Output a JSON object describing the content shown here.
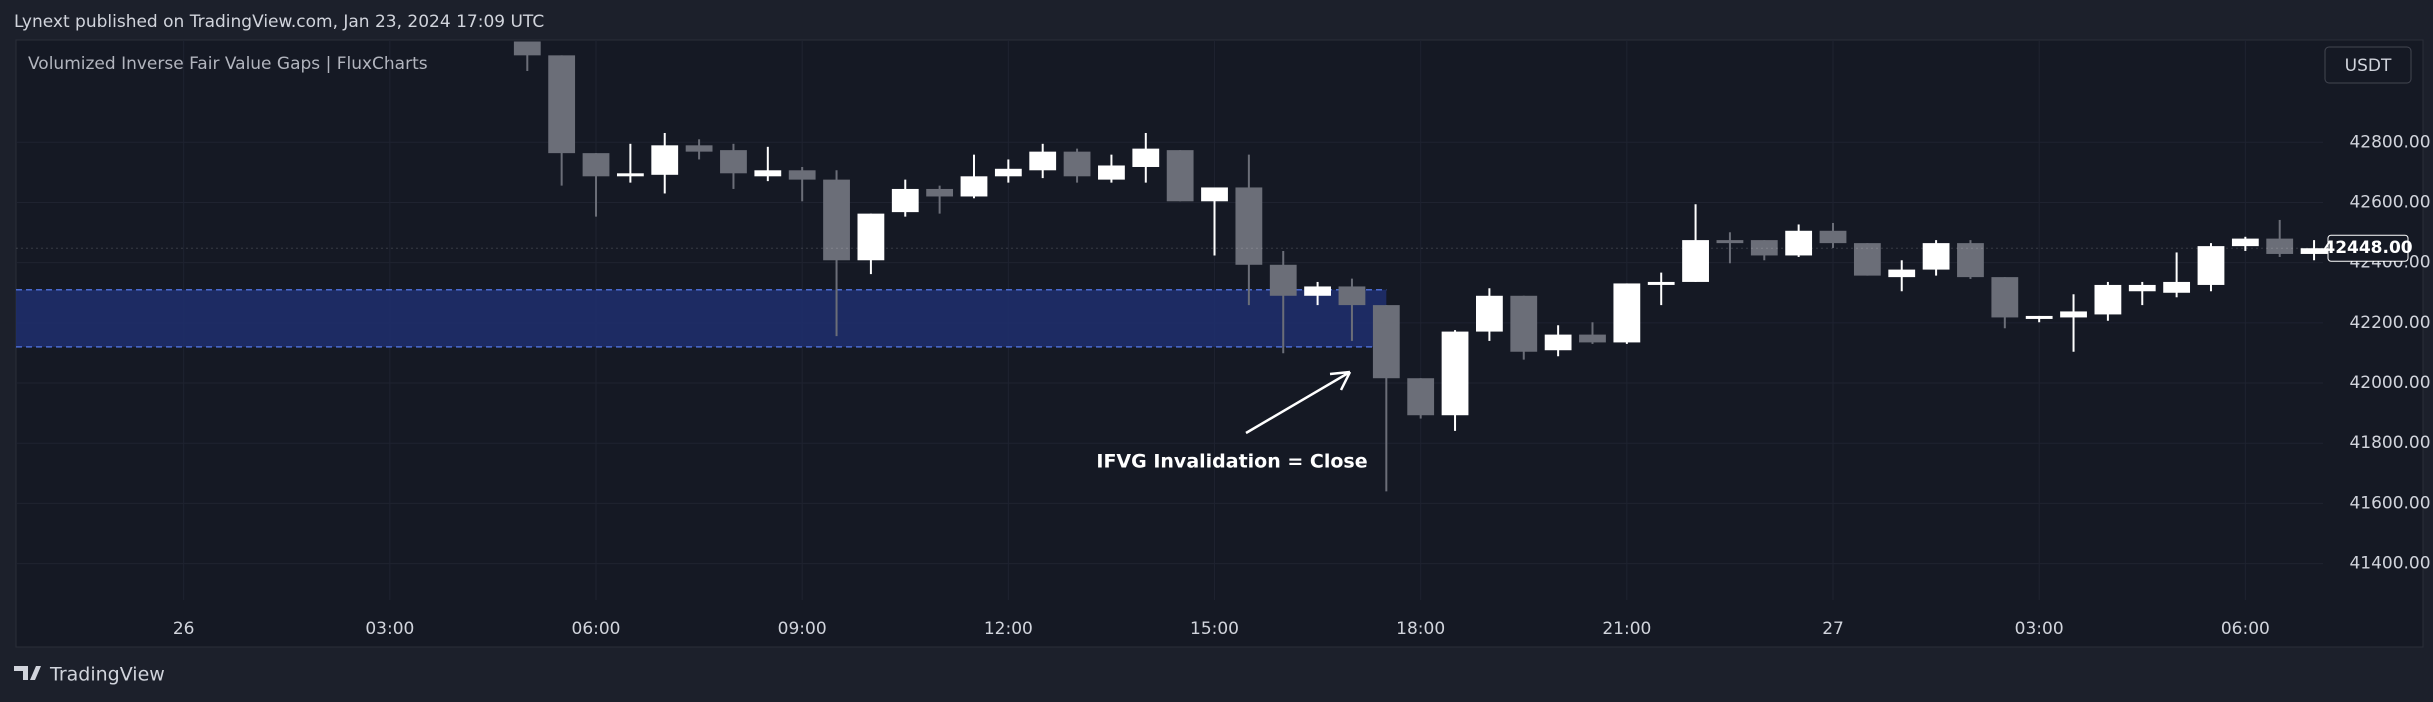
{
  "header": {
    "published": "Lynext published on TradingView.com, Jan 23, 2024 17:09 UTC",
    "brand": "TradingView"
  },
  "chart_data": {
    "type": "candlestick",
    "title": "Volumized Inverse Fair Value Gaps | FluxCharts",
    "currency": "USDT",
    "x": [
      5,
      5.5,
      6,
      6.5,
      7,
      7.5,
      8,
      8.5,
      9,
      9.5,
      10,
      10.5,
      11,
      11.5,
      12,
      12.5,
      13,
      13.5,
      14,
      14.5,
      15,
      15.5,
      16,
      16.5,
      17,
      17.5,
      18,
      18.5,
      19,
      19.5,
      20,
      20.5,
      21,
      21.5,
      22,
      22.5,
      23,
      23.5,
      24,
      24.5,
      25,
      25.5,
      26,
      26.5,
      27,
      27.5,
      28,
      28.5,
      29,
      29.5,
      30,
      30.5,
      31
    ],
    "open": [
      43135,
      43089,
      42764,
      42687,
      42692,
      42790,
      42774,
      42687,
      42707,
      42676,
      42408,
      42568,
      42645,
      42620,
      42687,
      42707,
      42769,
      42676,
      42718,
      42774,
      42604,
      42650,
      42393,
      42290,
      42321,
      42259,
      42016,
      41893,
      42171,
      42290,
      42109,
      42161,
      42135,
      42326,
      42336,
      42475,
      42475,
      42424,
      42506,
      42465,
      42352,
      42377,
      42465,
      42352,
      42213,
      42218,
      42228,
      42305,
      42300,
      42326,
      42455,
      42480,
      42429
    ],
    "high": [
      43135,
      43089,
      42764,
      42795,
      42831,
      42810,
      42795,
      42785,
      42718,
      42707,
      42563,
      42676,
      42656,
      42759,
      42743,
      42795,
      42779,
      42759,
      42831,
      42774,
      42650,
      42759,
      42439,
      42336,
      42347,
      42259,
      42016,
      42176,
      42315,
      42290,
      42192,
      42202,
      42331,
      42367,
      42594,
      42501,
      42475,
      42527,
      42532,
      42465,
      42408,
      42475,
      42475,
      42352,
      42223,
      42295,
      42336,
      42336,
      42434,
      42465,
      42486,
      42542,
      42475
    ],
    "low": [
      43037,
      42656,
      42553,
      42666,
      42630,
      42743,
      42645,
      42671,
      42604,
      42156,
      42362,
      42553,
      42563,
      42614,
      42666,
      42681,
      42666,
      42666,
      42666,
      42604,
      42424,
      42259,
      42099,
      42259,
      42140,
      41640,
      41882,
      41841,
      42140,
      42078,
      42089,
      42130,
      42130,
      42259,
      42336,
      42398,
      42408,
      42419,
      42449,
      42357,
      42305,
      42357,
      42346,
      42182,
      42202,
      42104,
      42207,
      42259,
      42285,
      42305,
      42439,
      42419,
      42408
    ],
    "close": [
      43089,
      42764,
      42687,
      42697,
      42790,
      42769,
      42697,
      42707,
      42676,
      42408,
      42563,
      42645,
      42620,
      42687,
      42712,
      42769,
      42687,
      42723,
      42779,
      42604,
      42650,
      42393,
      42290,
      42321,
      42259,
      42016,
      41893,
      42171,
      42290,
      42104,
      42161,
      42135,
      42331,
      42336,
      42475,
      42465,
      42424,
      42506,
      42465,
      42357,
      42377,
      42465,
      42352,
      42218,
      42223,
      42238,
      42326,
      42326,
      42336,
      42455,
      42480,
      42429,
      42448
    ],
    "up_color": "#ffffff",
    "down_color": "#6b6e78",
    "xlim": [
      -2.44,
      31.13
    ],
    "xticks": [
      {
        "value": 0,
        "label": "26"
      },
      {
        "value": 3,
        "label": "03:00"
      },
      {
        "value": 6,
        "label": "06:00"
      },
      {
        "value": 9,
        "label": "09:00"
      },
      {
        "value": 12,
        "label": "12:00"
      },
      {
        "value": 15,
        "label": "15:00"
      },
      {
        "value": 18,
        "label": "18:00"
      },
      {
        "value": 21,
        "label": "21:00"
      },
      {
        "value": 24,
        "label": "27"
      },
      {
        "value": 27,
        "label": "03:00"
      },
      {
        "value": 30,
        "label": "06:00"
      }
    ],
    "ylim": [
      41279,
      43140
    ],
    "yticks": [
      {
        "value": 41400,
        "label": "41400.00"
      },
      {
        "value": 41600,
        "label": "41600.00"
      },
      {
        "value": 41800,
        "label": "41800.00"
      },
      {
        "value": 42000,
        "label": "42000.00"
      },
      {
        "value": 42200,
        "label": "42200.00"
      },
      {
        "value": 42400,
        "label": "42400.00"
      },
      {
        "value": 42600,
        "label": "42600.00"
      },
      {
        "value": 42800,
        "label": "42800.00"
      }
    ],
    "last_price": {
      "value": 42448,
      "label": "42448.00"
    },
    "grid": true,
    "zone": {
      "top": 42310,
      "bottom": 42120,
      "end": 17.5,
      "color": "#1e2f6e",
      "border": "#4a6bd0"
    },
    "annotation": "IFVG Invalidation = Close"
  }
}
